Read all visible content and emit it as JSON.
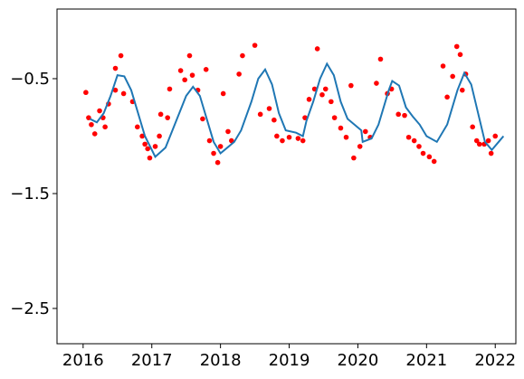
{
  "chart_data": {
    "type": "line",
    "xlim": [
      2015.62,
      2022.3
    ],
    "xticks": [
      2016,
      2017,
      2018,
      2019,
      2020,
      2021,
      2022
    ],
    "ylim": [
      -2.807,
      0.106
    ],
    "yticks": [
      {
        "value": -2.5,
        "label": "−2.5"
      },
      {
        "value": -1.5,
        "label": "−1.5"
      },
      {
        "value": -0.5,
        "label": "−0.5"
      }
    ],
    "grid": false,
    "series": [
      {
        "type": "scatter",
        "color": "#ff0000",
        "x": [
          2016.04,
          2016.08,
          2016.12,
          2016.17,
          2016.24,
          2016.29,
          2016.32,
          2016.37,
          2016.47,
          2016.55,
          2016.47,
          2016.59,
          2016.72,
          2016.79,
          2016.86,
          2016.9,
          2016.94,
          2016.97,
          2017.05,
          2017.11,
          2017.13,
          2017.23,
          2017.26,
          2017.42,
          2017.48,
          2017.55,
          2017.59,
          2017.67,
          2017.74,
          2017.79,
          2017.84,
          2017.9,
          2017.96,
          2018.0,
          2018.04,
          2018.11,
          2018.16,
          2018.27,
          2018.32,
          2018.5,
          2018.58,
          2018.71,
          2018.78,
          2018.82,
          2018.9,
          2019.0,
          2019.13,
          2019.2,
          2019.23,
          2019.29,
          2019.37,
          2019.41,
          2019.48,
          2019.53,
          2019.61,
          2019.66,
          2019.75,
          2019.83,
          2019.9,
          2019.94,
          2020.03,
          2020.11,
          2020.18,
          2020.27,
          2020.33,
          2020.43,
          2020.49,
          2020.59,
          2020.68,
          2020.74,
          2020.82,
          2020.89,
          2020.95,
          2021.04,
          2021.11,
          2021.24,
          2021.3,
          2021.38,
          2021.44,
          2021.49,
          2021.52,
          2021.57,
          2021.67,
          2021.73,
          2021.77,
          2021.84,
          2021.9,
          2021.94,
          2022.0
        ],
        "values": [
          -0.62,
          -0.84,
          -0.9,
          -0.98,
          -0.78,
          -0.84,
          -0.92,
          -0.72,
          -0.41,
          -0.3,
          -0.6,
          -0.63,
          -0.7,
          -0.92,
          -1.0,
          -1.07,
          -1.11,
          -1.19,
          -1.09,
          -1.0,
          -0.81,
          -0.84,
          -0.59,
          -0.43,
          -0.51,
          -0.3,
          -0.47,
          -0.6,
          -0.85,
          -0.42,
          -1.04,
          -1.15,
          -1.23,
          -1.09,
          -0.63,
          -0.96,
          -1.04,
          -0.46,
          -0.3,
          -0.21,
          -0.81,
          -0.76,
          -0.86,
          -1.0,
          -1.04,
          -1.01,
          -1.02,
          -1.04,
          -0.84,
          -0.68,
          -0.59,
          -0.24,
          -0.64,
          -0.59,
          -0.7,
          -0.84,
          -0.93,
          -1.01,
          -0.56,
          -1.19,
          -1.09,
          -0.96,
          -1.01,
          -0.54,
          -0.33,
          -0.63,
          -0.59,
          -0.81,
          -0.82,
          -1.01,
          -1.04,
          -1.09,
          -1.15,
          -1.18,
          -1.22,
          -0.39,
          -0.66,
          -0.48,
          -0.22,
          -0.29,
          -0.6,
          -0.46,
          -0.92,
          -1.04,
          -1.07,
          -1.07,
          -1.04,
          -1.15,
          -1.0
        ]
      },
      {
        "type": "line",
        "color": "#1f77b4",
        "x": [
          2016.1,
          2016.2,
          2016.3,
          2016.4,
          2016.5,
          2016.6,
          2016.7,
          2016.8,
          2016.9,
          2017.0,
          2017.05,
          2017.2,
          2017.3,
          2017.4,
          2017.5,
          2017.6,
          2017.7,
          2017.8,
          2017.9,
          2018.0,
          2018.1,
          2018.2,
          2018.3,
          2018.45,
          2018.55,
          2018.65,
          2018.75,
          2018.85,
          2018.95,
          2019.1,
          2019.2,
          2019.25,
          2019.35,
          2019.45,
          2019.55,
          2019.65,
          2019.75,
          2019.85,
          2019.95,
          2020.05,
          2020.07,
          2020.2,
          2020.3,
          2020.45,
          2020.5,
          2020.6,
          2020.7,
          2020.8,
          2020.9,
          2021.0,
          2021.15,
          2021.3,
          2021.45,
          2021.55,
          2021.65,
          2021.75,
          2021.85,
          2021.95,
          2022.05,
          2022.12
        ],
        "values": [
          -0.85,
          -0.88,
          -0.8,
          -0.65,
          -0.47,
          -0.48,
          -0.6,
          -0.8,
          -1.0,
          -1.12,
          -1.18,
          -1.1,
          -0.95,
          -0.8,
          -0.65,
          -0.57,
          -0.65,
          -0.85,
          -1.05,
          -1.15,
          -1.1,
          -1.05,
          -0.95,
          -0.7,
          -0.5,
          -0.42,
          -0.55,
          -0.8,
          -0.95,
          -0.97,
          -1.0,
          -0.87,
          -0.7,
          -0.5,
          -0.37,
          -0.47,
          -0.7,
          -0.85,
          -0.9,
          -0.95,
          -1.05,
          -1.02,
          -0.9,
          -0.6,
          -0.52,
          -0.56,
          -0.75,
          -0.83,
          -0.9,
          -1.0,
          -1.05,
          -0.9,
          -0.6,
          -0.45,
          -0.55,
          -0.8,
          -1.05,
          -1.12,
          -1.05,
          -1.0
        ]
      }
    ]
  }
}
